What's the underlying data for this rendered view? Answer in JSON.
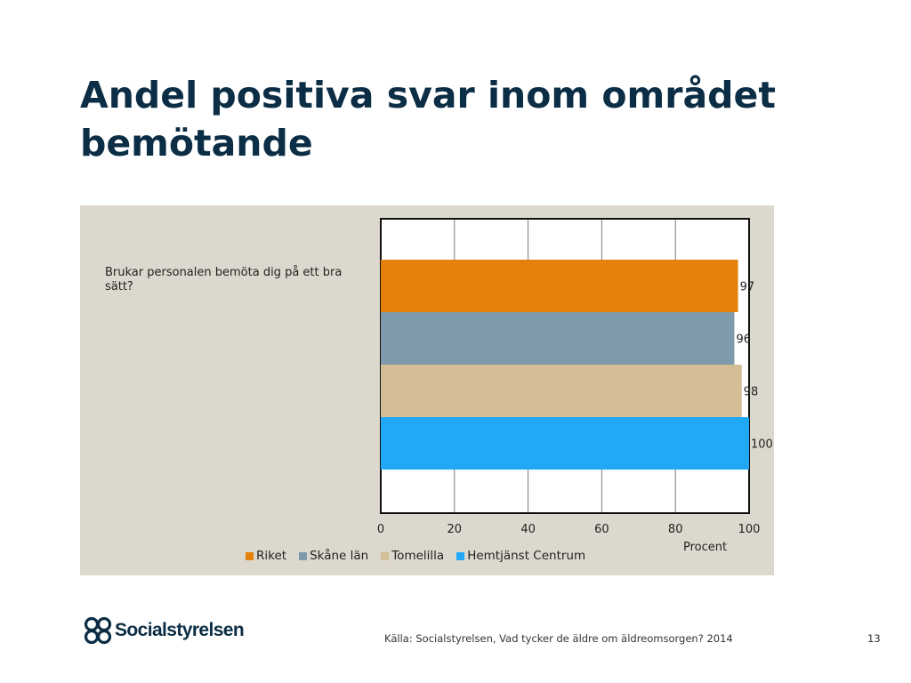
{
  "slide": {
    "title": "Andel positiva svar inom området bemötande",
    "source": "Källa: Socialstyrelsen, Vad tycker de äldre om äldreomsorgen? 2014",
    "page_number": "13",
    "logo_text": "Socialstyrelsen"
  },
  "chart_data": {
    "type": "bar",
    "orientation": "horizontal",
    "categories": [
      "Brukar personalen bemöta dig på ett bra sätt?"
    ],
    "series": [
      {
        "name": "Riket",
        "values": [
          97
        ],
        "color": "#e5810a"
      },
      {
        "name": "Skåne län",
        "values": [
          96
        ],
        "color": "#7f9aaa"
      },
      {
        "name": "Tomelilla",
        "values": [
          98
        ],
        "color": "#d3be95"
      },
      {
        "name": "Hemtjänst Centrum",
        "values": [
          100
        ],
        "color": "#21a9f7"
      }
    ],
    "xlabel": "Procent",
    "xlim": [
      0,
      100
    ],
    "xticks": [
      0,
      20,
      40,
      60,
      80,
      100
    ],
    "grid": true,
    "legend": "bottom"
  }
}
